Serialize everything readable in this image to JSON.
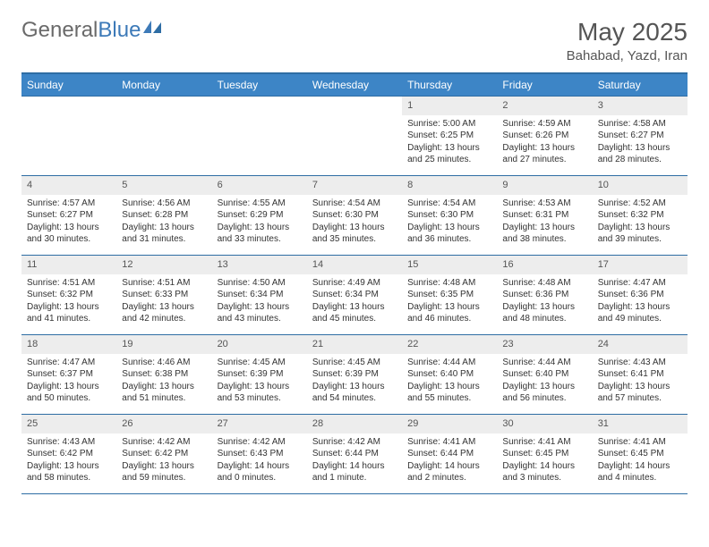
{
  "brand": {
    "part1": "General",
    "part2": "Blue"
  },
  "title": "May 2025",
  "location": "Bahabad, Yazd, Iran",
  "colors": {
    "header_bg": "#3d85c6",
    "border": "#2e6da4",
    "daynum_bg": "#ededed",
    "text": "#333333",
    "brand_gray": "#6a6a6a",
    "brand_blue": "#3d7ab8"
  },
  "weekdays": [
    "Sunday",
    "Monday",
    "Tuesday",
    "Wednesday",
    "Thursday",
    "Friday",
    "Saturday"
  ],
  "weeks": [
    [
      {
        "n": "",
        "sr": "",
        "ss": "",
        "dl": ""
      },
      {
        "n": "",
        "sr": "",
        "ss": "",
        "dl": ""
      },
      {
        "n": "",
        "sr": "",
        "ss": "",
        "dl": ""
      },
      {
        "n": "",
        "sr": "",
        "ss": "",
        "dl": ""
      },
      {
        "n": "1",
        "sr": "5:00 AM",
        "ss": "6:25 PM",
        "dl": "13 hours and 25 minutes."
      },
      {
        "n": "2",
        "sr": "4:59 AM",
        "ss": "6:26 PM",
        "dl": "13 hours and 27 minutes."
      },
      {
        "n": "3",
        "sr": "4:58 AM",
        "ss": "6:27 PM",
        "dl": "13 hours and 28 minutes."
      }
    ],
    [
      {
        "n": "4",
        "sr": "4:57 AM",
        "ss": "6:27 PM",
        "dl": "13 hours and 30 minutes."
      },
      {
        "n": "5",
        "sr": "4:56 AM",
        "ss": "6:28 PM",
        "dl": "13 hours and 31 minutes."
      },
      {
        "n": "6",
        "sr": "4:55 AM",
        "ss": "6:29 PM",
        "dl": "13 hours and 33 minutes."
      },
      {
        "n": "7",
        "sr": "4:54 AM",
        "ss": "6:30 PM",
        "dl": "13 hours and 35 minutes."
      },
      {
        "n": "8",
        "sr": "4:54 AM",
        "ss": "6:30 PM",
        "dl": "13 hours and 36 minutes."
      },
      {
        "n": "9",
        "sr": "4:53 AM",
        "ss": "6:31 PM",
        "dl": "13 hours and 38 minutes."
      },
      {
        "n": "10",
        "sr": "4:52 AM",
        "ss": "6:32 PM",
        "dl": "13 hours and 39 minutes."
      }
    ],
    [
      {
        "n": "11",
        "sr": "4:51 AM",
        "ss": "6:32 PM",
        "dl": "13 hours and 41 minutes."
      },
      {
        "n": "12",
        "sr": "4:51 AM",
        "ss": "6:33 PM",
        "dl": "13 hours and 42 minutes."
      },
      {
        "n": "13",
        "sr": "4:50 AM",
        "ss": "6:34 PM",
        "dl": "13 hours and 43 minutes."
      },
      {
        "n": "14",
        "sr": "4:49 AM",
        "ss": "6:34 PM",
        "dl": "13 hours and 45 minutes."
      },
      {
        "n": "15",
        "sr": "4:48 AM",
        "ss": "6:35 PM",
        "dl": "13 hours and 46 minutes."
      },
      {
        "n": "16",
        "sr": "4:48 AM",
        "ss": "6:36 PM",
        "dl": "13 hours and 48 minutes."
      },
      {
        "n": "17",
        "sr": "4:47 AM",
        "ss": "6:36 PM",
        "dl": "13 hours and 49 minutes."
      }
    ],
    [
      {
        "n": "18",
        "sr": "4:47 AM",
        "ss": "6:37 PM",
        "dl": "13 hours and 50 minutes."
      },
      {
        "n": "19",
        "sr": "4:46 AM",
        "ss": "6:38 PM",
        "dl": "13 hours and 51 minutes."
      },
      {
        "n": "20",
        "sr": "4:45 AM",
        "ss": "6:39 PM",
        "dl": "13 hours and 53 minutes."
      },
      {
        "n": "21",
        "sr": "4:45 AM",
        "ss": "6:39 PM",
        "dl": "13 hours and 54 minutes."
      },
      {
        "n": "22",
        "sr": "4:44 AM",
        "ss": "6:40 PM",
        "dl": "13 hours and 55 minutes."
      },
      {
        "n": "23",
        "sr": "4:44 AM",
        "ss": "6:40 PM",
        "dl": "13 hours and 56 minutes."
      },
      {
        "n": "24",
        "sr": "4:43 AM",
        "ss": "6:41 PM",
        "dl": "13 hours and 57 minutes."
      }
    ],
    [
      {
        "n": "25",
        "sr": "4:43 AM",
        "ss": "6:42 PM",
        "dl": "13 hours and 58 minutes."
      },
      {
        "n": "26",
        "sr": "4:42 AM",
        "ss": "6:42 PM",
        "dl": "13 hours and 59 minutes."
      },
      {
        "n": "27",
        "sr": "4:42 AM",
        "ss": "6:43 PM",
        "dl": "14 hours and 0 minutes."
      },
      {
        "n": "28",
        "sr": "4:42 AM",
        "ss": "6:44 PM",
        "dl": "14 hours and 1 minute."
      },
      {
        "n": "29",
        "sr": "4:41 AM",
        "ss": "6:44 PM",
        "dl": "14 hours and 2 minutes."
      },
      {
        "n": "30",
        "sr": "4:41 AM",
        "ss": "6:45 PM",
        "dl": "14 hours and 3 minutes."
      },
      {
        "n": "31",
        "sr": "4:41 AM",
        "ss": "6:45 PM",
        "dl": "14 hours and 4 minutes."
      }
    ]
  ],
  "labels": {
    "sunrise": "Sunrise: ",
    "sunset": "Sunset: ",
    "daylight": "Daylight: "
  }
}
